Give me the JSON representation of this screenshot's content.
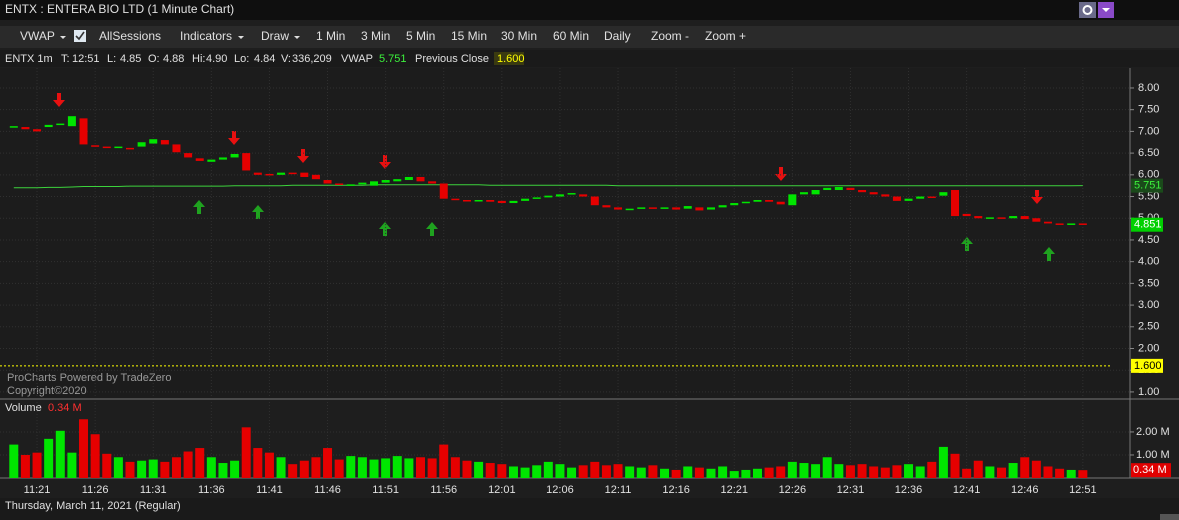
{
  "window_title": "ENTX : ENTERA BIO LTD (1 Minute Chart)",
  "toolbar": [
    "VWAP",
    "AllSessions",
    "Indicators",
    "Draw",
    "1 Min",
    "3 Min",
    "5 Min",
    "15 Min",
    "30 Min",
    "60 Min",
    "Daily",
    "Zoom -",
    "Zoom +"
  ],
  "info": [
    "ENTX 1m",
    "T:",
    "12:51",
    "L:",
    "4.85",
    "O:",
    "4.88",
    "Hi:",
    "4.90",
    "Lo:",
    "4.84",
    "V:",
    "336,209"
  ],
  "watermark": [
    "ProCharts Powered by TradeZero",
    "Copyright©2020"
  ],
  "footer": "Thursday, March 11, 2021 (Regular)",
  "chart_data": {
    "type": "candlestick",
    "categories": [
      null,
      null,
      "11:21",
      null,
      null,
      null,
      null,
      "11:26",
      null,
      null,
      null,
      null,
      "11:31",
      null,
      null,
      null,
      null,
      "11:36",
      null,
      null,
      null,
      null,
      "11:41",
      null,
      null,
      null,
      null,
      "11:46",
      null,
      null,
      null,
      null,
      "11:51",
      null,
      null,
      null,
      null,
      "11:56",
      null,
      null,
      null,
      null,
      "12:01",
      null,
      null,
      null,
      null,
      "12:06",
      null,
      null,
      null,
      null,
      "12:11",
      null,
      null,
      null,
      null,
      "12:16",
      null,
      null,
      null,
      null,
      "12:21",
      null,
      null,
      null,
      null,
      "12:26",
      null,
      null,
      null,
      null,
      "12:31",
      null,
      null,
      null,
      null,
      "12:36",
      null,
      null,
      null,
      null,
      "12:41",
      null,
      null,
      null,
      null,
      "12:46",
      null,
      null,
      null,
      null,
      "12:51"
    ],
    "open": [
      7.1,
      7.1,
      7.05,
      7.1,
      7.15,
      7.12,
      7.3,
      6.68,
      6.65,
      6.63,
      6.62,
      6.65,
      6.72,
      6.8,
      6.7,
      6.5,
      6.38,
      6.3,
      6.35,
      6.4,
      6.5,
      6.05,
      6.02,
      6.0,
      6.05,
      6.05,
      6.0,
      5.88,
      5.8,
      5.75,
      5.78,
      5.75,
      5.82,
      5.85,
      5.88,
      5.95,
      5.85,
      5.8,
      5.45,
      5.42,
      5.4,
      5.42,
      5.4,
      5.35,
      5.4,
      5.45,
      5.48,
      5.5,
      5.55,
      5.55,
      5.5,
      5.3,
      5.25,
      5.2,
      5.22,
      5.25,
      5.22,
      5.25,
      5.22,
      5.25,
      5.2,
      5.25,
      5.3,
      5.35,
      5.38,
      5.42,
      5.38,
      5.3,
      5.55,
      5.55,
      5.65,
      5.65,
      5.7,
      5.65,
      5.6,
      5.55,
      5.5,
      5.4,
      5.45,
      5.5,
      5.52,
      5.65,
      5.1,
      5.05,
      5.0,
      5.02,
      5.0,
      5.05,
      5.0,
      4.92,
      4.88,
      4.86,
      4.88
    ],
    "close": [
      7.12,
      7.05,
      7.0,
      7.15,
      7.18,
      7.35,
      6.7,
      6.65,
      6.62,
      6.65,
      6.6,
      6.75,
      6.82,
      6.7,
      6.52,
      6.4,
      6.32,
      6.35,
      6.4,
      6.48,
      6.1,
      6.0,
      6.0,
      6.05,
      6.02,
      5.95,
      5.9,
      5.8,
      5.78,
      5.78,
      5.82,
      5.85,
      5.88,
      5.9,
      5.95,
      5.85,
      5.8,
      5.45,
      5.42,
      5.4,
      5.42,
      5.38,
      5.35,
      5.4,
      5.45,
      5.48,
      5.52,
      5.55,
      5.58,
      5.5,
      5.3,
      5.25,
      5.2,
      5.22,
      5.25,
      5.22,
      5.25,
      5.2,
      5.28,
      5.18,
      5.25,
      5.3,
      5.35,
      5.38,
      5.42,
      5.38,
      5.32,
      5.55,
      5.6,
      5.65,
      5.7,
      5.72,
      5.65,
      5.6,
      5.55,
      5.5,
      5.4,
      5.45,
      5.5,
      5.48,
      5.6,
      5.05,
      5.05,
      5.0,
      5.02,
      5.0,
      5.05,
      4.98,
      4.92,
      4.88,
      4.86,
      4.88,
      4.85
    ],
    "up_color": "#00e600",
    "down_color": "#e60000",
    "ylim": [
      0.86,
      8.46
    ],
    "yticks": [
      {
        "value": 8,
        "label": "8.00"
      },
      {
        "value": 7.5,
        "label": "7.50"
      },
      {
        "value": 7,
        "label": "7.00"
      },
      {
        "value": 6.5,
        "label": "6.50"
      },
      {
        "value": 6,
        "label": "6.00"
      },
      {
        "value": 5.5,
        "label": "5.50"
      },
      {
        "value": 5,
        "label": "5.00"
      },
      {
        "value": 4.5,
        "label": "4.50"
      },
      {
        "value": 4,
        "label": "4.00"
      },
      {
        "value": 3.5,
        "label": "3.50"
      },
      {
        "value": 3,
        "label": "3.00"
      },
      {
        "value": 2.5,
        "label": "2.50"
      },
      {
        "value": 2,
        "label": "2.00"
      },
      {
        "value": 1.5,
        "label": "1.50"
      },
      {
        "value": 1,
        "label": "1.00"
      }
    ],
    "grid": true,
    "vwap": {
      "name": "VWAP",
      "color": "#3cd23c",
      "values": [
        5.7,
        5.7,
        5.7,
        5.71,
        5.71,
        5.72,
        5.73,
        5.73,
        5.73,
        5.73,
        5.74,
        5.74,
        5.74,
        5.74,
        5.74,
        5.74,
        5.74,
        5.74,
        5.74,
        5.75,
        5.75,
        5.75,
        5.75,
        5.75,
        5.76,
        5.76,
        5.76,
        5.76,
        5.76,
        5.76,
        5.76,
        5.77,
        5.77,
        5.77,
        5.77,
        5.77,
        5.77,
        5.77,
        5.77,
        5.77,
        5.77,
        5.76,
        5.76,
        5.76,
        5.76,
        5.76,
        5.76,
        5.76,
        5.76,
        5.76,
        5.76,
        5.76,
        5.75,
        5.75,
        5.75,
        5.75,
        5.75,
        5.75,
        5.75,
        5.75,
        5.75,
        5.75,
        5.75,
        5.75,
        5.75,
        5.75,
        5.75,
        5.75,
        5.75,
        5.75,
        5.75,
        5.75,
        5.75,
        5.75,
        5.75,
        5.75,
        5.75,
        5.75,
        5.75,
        5.75,
        5.75,
        5.75,
        5.75,
        5.75,
        5.75,
        5.75,
        5.75,
        5.75,
        5.75,
        5.75,
        5.75,
        5.75,
        5.751
      ]
    },
    "vwap_last": {
      "value": 5.751,
      "label": "5.751"
    },
    "last_price": {
      "value": 4.851,
      "label": "4.851"
    },
    "previous_close": {
      "name": "Previous Close",
      "value": 1.6,
      "label": "1.600",
      "color": "#ffff00"
    },
    "volume": {
      "title": "Volume",
      "current_label": "0.34 M",
      "ylim": [
        0,
        3.3
      ],
      "yticks": [
        {
          "value": 2,
          "label": "2.00 M"
        },
        {
          "value": 1,
          "label": "1.00 M"
        }
      ],
      "values": [
        1.45,
        1.0,
        1.1,
        1.7,
        2.05,
        1.1,
        2.55,
        1.9,
        1.05,
        0.9,
        0.7,
        0.75,
        0.8,
        0.7,
        0.9,
        1.15,
        1.3,
        0.9,
        0.65,
        0.75,
        2.2,
        1.3,
        1.1,
        0.9,
        0.6,
        0.75,
        0.9,
        1.3,
        0.8,
        0.95,
        0.9,
        0.8,
        0.85,
        0.95,
        0.85,
        0.9,
        0.85,
        1.45,
        0.9,
        0.75,
        0.7,
        0.65,
        0.6,
        0.5,
        0.45,
        0.55,
        0.7,
        0.6,
        0.45,
        0.55,
        0.7,
        0.55,
        0.6,
        0.5,
        0.45,
        0.55,
        0.4,
        0.35,
        0.5,
        0.45,
        0.4,
        0.5,
        0.3,
        0.35,
        0.4,
        0.45,
        0.5,
        0.7,
        0.65,
        0.6,
        0.9,
        0.6,
        0.55,
        0.6,
        0.5,
        0.45,
        0.55,
        0.6,
        0.5,
        0.7,
        1.35,
        1.05,
        0.4,
        0.75,
        0.5,
        0.45,
        0.65,
        0.9,
        0.75,
        0.5,
        0.4,
        0.35,
        0.34
      ]
    }
  }
}
